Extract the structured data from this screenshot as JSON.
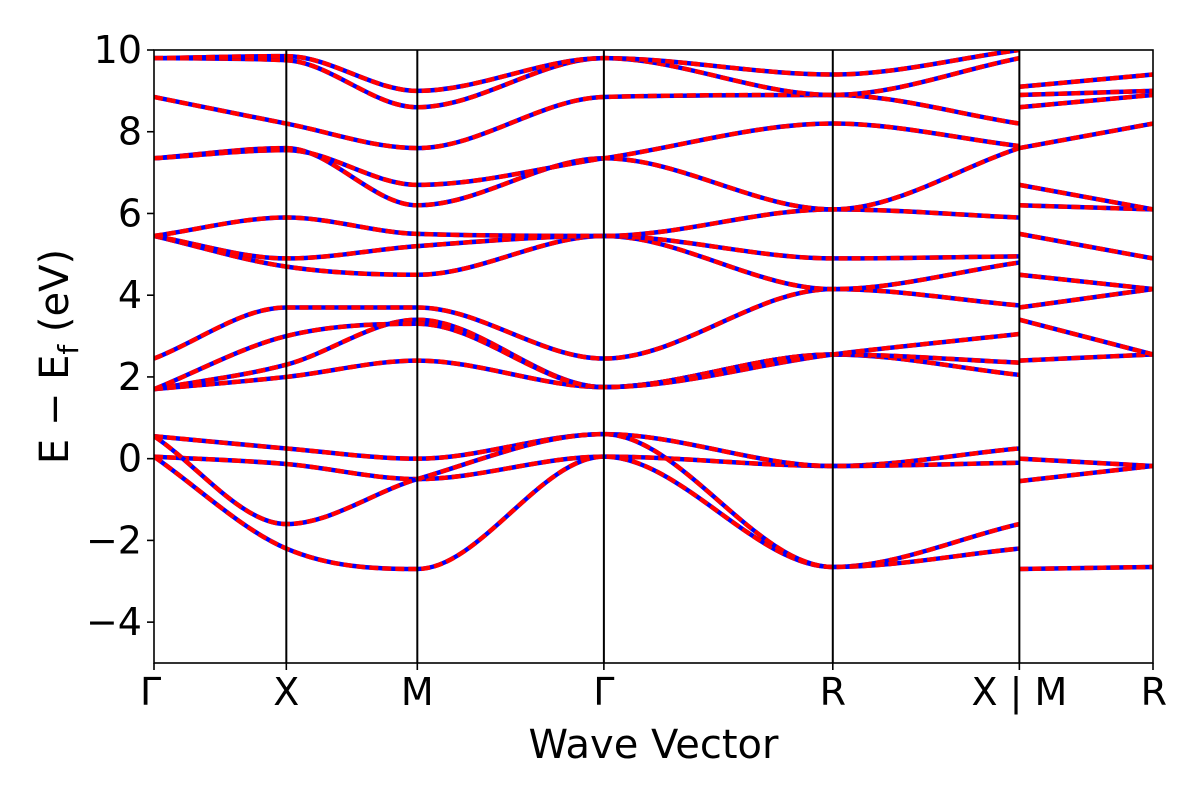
{
  "chart_data": {
    "type": "line",
    "xlabel": "Wave Vector",
    "ylabel": "E − E",
    "ylabel_sub": "f",
    "ylabel_unit": " (eV)",
    "ylim": [
      -5,
      10
    ],
    "yticks": [
      -4,
      -2,
      0,
      2,
      4,
      6,
      8,
      10
    ],
    "xlim": [
      0,
      7.55
    ],
    "xticks": [
      {
        "x": 0.0,
        "label": "Γ"
      },
      {
        "x": 1.0,
        "label": "X"
      },
      {
        "x": 1.99,
        "label": "M"
      },
      {
        "x": 3.4,
        "label": "Γ"
      },
      {
        "x": 5.13,
        "label": "R"
      },
      {
        "x": 6.54,
        "label": "X | M"
      },
      {
        "x": 7.55,
        "label": "R"
      }
    ],
    "vlines": [
      1.0,
      1.99,
      3.4,
      5.13,
      6.54
    ],
    "grid": false,
    "colors": {
      "red_series": "#ff0000",
      "blue_series": "#0000ff"
    },
    "segments": [
      {
        "name": "",
        "x": [
          0,
          1.0,
          1.99,
          3.4,
          5.13,
          6.54
        ],
        "bands": [
          [
            0.05,
            -0.13,
            -0.5,
            0.05,
            -0.18,
            0.25
          ],
          [
            0.05,
            -2.2,
            -2.7,
            0.05,
            -2.65,
            -1.6
          ],
          [
            0.55,
            0.25,
            0.0,
            0.6,
            -0.18,
            -0.1
          ],
          [
            0.55,
            -1.6,
            -0.5,
            0.6,
            -2.65,
            -2.2
          ],
          [
            1.7,
            2.0,
            2.4,
            1.75,
            2.55,
            2.05
          ],
          [
            1.7,
            2.3,
            3.4,
            1.75,
            2.55,
            2.35
          ],
          [
            1.7,
            3.0,
            3.3,
            1.75,
            2.55,
            3.05
          ],
          [
            2.45,
            3.7,
            3.7,
            2.45,
            4.15,
            3.75
          ],
          [
            5.45,
            4.7,
            4.5,
            5.45,
            4.15,
            4.8
          ],
          [
            5.45,
            4.9,
            5.2,
            5.45,
            4.9,
            4.95
          ],
          [
            5.45,
            5.9,
            5.5,
            5.45,
            6.1,
            5.9
          ],
          [
            7.35,
            7.6,
            6.2,
            7.35,
            6.1,
            7.6
          ],
          [
            7.35,
            7.55,
            6.7,
            7.35,
            8.2,
            7.65
          ],
          [
            8.85,
            8.2,
            7.6,
            8.85,
            8.9,
            8.2
          ],
          [
            9.8,
            9.75,
            8.6,
            9.8,
            8.9,
            9.8
          ],
          [
            9.8,
            9.85,
            9.0,
            9.8,
            9.4,
            10.0
          ]
        ]
      },
      {
        "name": "",
        "x": [
          6.54,
          7.55
        ],
        "bands": [
          [
            -2.7,
            -2.65
          ],
          [
            -0.55,
            -0.18
          ],
          [
            0.0,
            -0.18
          ],
          [
            2.4,
            2.55
          ],
          [
            3.4,
            2.55
          ],
          [
            3.7,
            4.15
          ],
          [
            4.5,
            4.15
          ],
          [
            5.5,
            4.9
          ],
          [
            6.2,
            6.1
          ],
          [
            6.7,
            6.1
          ],
          [
            7.6,
            8.2
          ],
          [
            8.6,
            8.9
          ],
          [
            8.9,
            9.0
          ],
          [
            9.1,
            9.4
          ]
        ]
      }
    ]
  }
}
